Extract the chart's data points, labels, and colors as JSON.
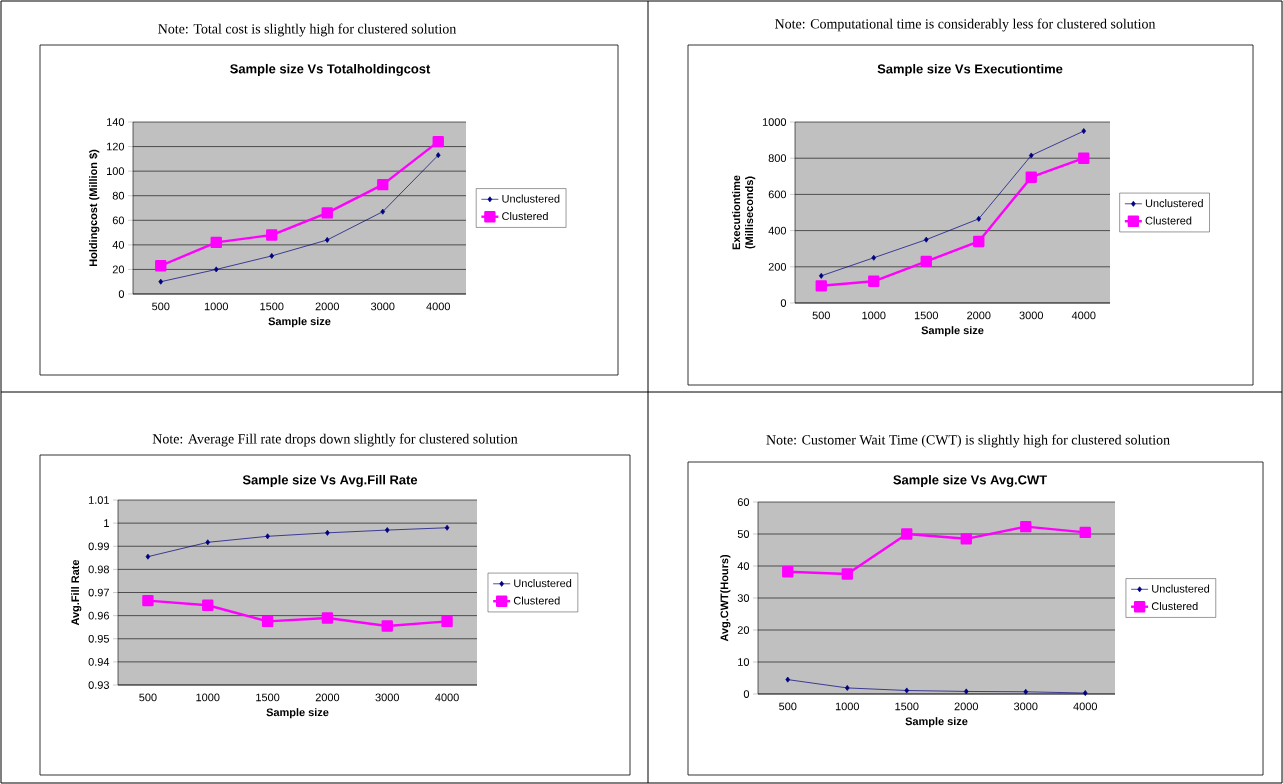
{
  "chart_data": [
    {
      "type": "line",
      "title": "Sample size Vs Totalholdingcost",
      "xlabel": "Sample size",
      "ylabel": "Holdingcost (Million $)",
      "annotations": [
        "Note: Total cost is slightly high  for clustered solution"
      ],
      "categories": [
        "500",
        "1000",
        "1500",
        "2000",
        "3000",
        "4000"
      ],
      "ylim": [
        0,
        140
      ],
      "yticks": [
        0,
        20,
        40,
        60,
        80,
        100,
        120,
        140
      ],
      "grid": "y",
      "legend": "right",
      "series": [
        {
          "name": "Unclustered",
          "color": "#000080",
          "marker": "diamond",
          "values": [
            10,
            20,
            31,
            44,
            67,
            113
          ]
        },
        {
          "name": "Clustered",
          "color": "#ff00ff",
          "marker": "square",
          "values": [
            23,
            42,
            48,
            66,
            89,
            124
          ]
        }
      ]
    },
    {
      "type": "line",
      "title": "Sample size Vs Executiontime",
      "xlabel": "Sample size",
      "ylabel": "Executiontime (Milliseconds)",
      "annotations": [
        "Note: Computational  time is considerably less for clustered solution"
      ],
      "categories": [
        "500",
        "1000",
        "1500",
        "2000",
        "3000",
        "4000"
      ],
      "ylim": [
        0,
        1000
      ],
      "yticks": [
        0,
        200,
        400,
        600,
        800,
        1000
      ],
      "grid": "y",
      "legend": "right",
      "series": [
        {
          "name": "Unclustered",
          "color": "#000080",
          "marker": "diamond",
          "values": [
            150,
            250,
            350,
            465,
            815,
            950
          ]
        },
        {
          "name": "Clustered",
          "color": "#ff00ff",
          "marker": "square",
          "values": [
            95,
            120,
            230,
            340,
            695,
            800
          ]
        }
      ]
    },
    {
      "type": "line",
      "title": "Sample size Vs Avg.Fill Rate",
      "xlabel": "Sample size",
      "ylabel": "Avg.Fill Rate",
      "annotations": [
        "Note: Average Fill rate drops down slightly for clustered solution"
      ],
      "categories": [
        "500",
        "1000",
        "1500",
        "2000",
        "3000",
        "4000"
      ],
      "ylim": [
        0.93,
        1.01
      ],
      "yticks": [
        0.93,
        0.94,
        0.95,
        0.96,
        0.97,
        0.98,
        0.99,
        1,
        1.01
      ],
      "grid": "y",
      "legend": "right",
      "series": [
        {
          "name": "Unclustered",
          "color": "#000080",
          "marker": "diamond",
          "values": [
            0.9855,
            0.9917,
            0.9943,
            0.9958,
            0.997,
            0.998
          ]
        },
        {
          "name": "Clustered",
          "color": "#ff00ff",
          "marker": "square",
          "values": [
            0.9665,
            0.9645,
            0.9575,
            0.959,
            0.9555,
            0.9575
          ]
        }
      ]
    },
    {
      "type": "line",
      "title": "Sample size Vs Avg.CWT",
      "xlabel": "Sample size",
      "ylabel": "Avg.CWT(Hours)",
      "annotations": [
        "Note: Customer Wait Time (CWT) is slightly high for clustered solution"
      ],
      "categories": [
        "500",
        "1000",
        "1500",
        "2000",
        "3000",
        "4000"
      ],
      "ylim": [
        0,
        60
      ],
      "yticks": [
        0,
        10,
        20,
        30,
        40,
        50,
        60
      ],
      "grid": "y",
      "legend": "right",
      "series": [
        {
          "name": "Unclustered",
          "color": "#000080",
          "marker": "diamond",
          "values": [
            4.5,
            1.9,
            1.1,
            0.8,
            0.7,
            0.3
          ]
        },
        {
          "name": "Clustered",
          "color": "#ff00ff",
          "marker": "square",
          "values": [
            38.2,
            37.5,
            50,
            48.5,
            52.3,
            50.5
          ]
        }
      ]
    }
  ]
}
